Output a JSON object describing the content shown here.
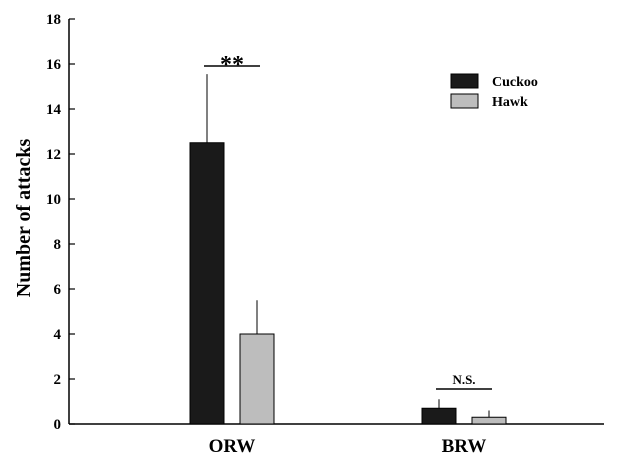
{
  "chart_data": {
    "type": "bar",
    "ylabel": "Number of attacks",
    "xlabel": "",
    "ylim": [
      0,
      18
    ],
    "yticks": [
      0,
      2,
      4,
      6,
      8,
      10,
      12,
      14,
      16,
      18
    ],
    "categories": [
      "ORW",
      "BRW"
    ],
    "series": [
      {
        "name": "Cuckoo",
        "color": "#1a1a1a",
        "values": [
          12.5,
          0.7
        ],
        "errors": [
          3.05,
          0.4
        ]
      },
      {
        "name": "Hawk",
        "color": "#bdbdbd",
        "values": [
          4.0,
          0.3
        ],
        "errors": [
          1.5,
          0.3
        ]
      }
    ],
    "significance": [
      "**",
      "N.S."
    ],
    "legend_position": "top-right",
    "grid": false
  }
}
